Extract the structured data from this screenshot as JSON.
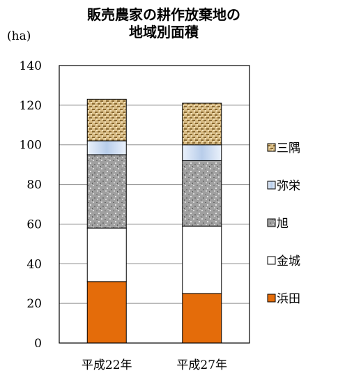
{
  "chart_data": {
    "type": "bar",
    "stacked": true,
    "title": [
      "販売農家の耕作放棄地の",
      "地域別面積"
    ],
    "unit_label": "(ha)",
    "categories": [
      "平成22年",
      "平成27年"
    ],
    "ylim": [
      0,
      140
    ],
    "yticks": [
      0,
      20,
      40,
      60,
      80,
      100,
      120,
      140
    ],
    "grid": true,
    "legend_position": "right",
    "series": [
      {
        "name": "浜田",
        "values": [
          31,
          25
        ],
        "color": "#e46c0a",
        "pattern": "solid"
      },
      {
        "name": "金城",
        "values": [
          27,
          34
        ],
        "color": "#ffffff",
        "pattern": "solid"
      },
      {
        "name": "旭",
        "values": [
          37,
          33
        ],
        "color": "#a6a6a6",
        "pattern": "granite"
      },
      {
        "name": "弥栄",
        "values": [
          7,
          8
        ],
        "color": "#c6d9f1",
        "pattern": "gradient"
      },
      {
        "name": "三隅",
        "values": [
          21,
          21
        ],
        "color": "#c9a86a",
        "pattern": "weave"
      }
    ]
  }
}
